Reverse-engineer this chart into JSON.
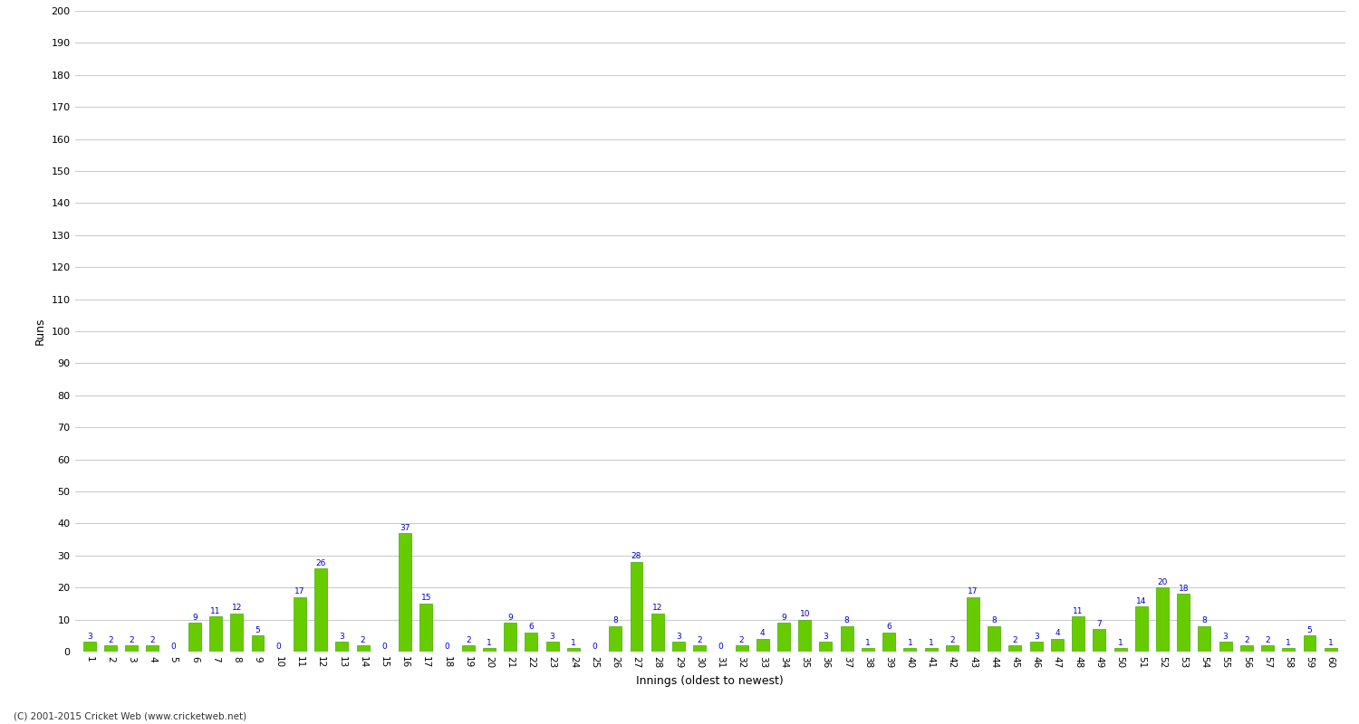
{
  "values": [
    3,
    2,
    2,
    2,
    0,
    9,
    11,
    12,
    5,
    0,
    17,
    26,
    3,
    2,
    0,
    37,
    15,
    0,
    2,
    1,
    9,
    6,
    3,
    1,
    0,
    8,
    28,
    12,
    3,
    2,
    0,
    2,
    4,
    9,
    10,
    3,
    8,
    1,
    6,
    1,
    1,
    2,
    17,
    8,
    2,
    3,
    4,
    11,
    7,
    1,
    14,
    20,
    18,
    8,
    3,
    2,
    2,
    1,
    5,
    1
  ],
  "x_labels": [
    "1",
    "2",
    "3",
    "4",
    "5",
    "6",
    "7",
    "8",
    "9",
    "10",
    "11",
    "12",
    "13",
    "14",
    "15",
    "16",
    "17",
    "18",
    "19",
    "20",
    "21",
    "22",
    "23",
    "24",
    "25",
    "26",
    "27",
    "28",
    "29",
    "30",
    "31",
    "32",
    "33",
    "34",
    "35",
    "36",
    "37",
    "38",
    "39",
    "40",
    "41",
    "42",
    "43",
    "44",
    "45",
    "46",
    "47",
    "48",
    "49",
    "50",
    "51",
    "52",
    "53",
    "54",
    "55",
    "56",
    "57",
    "58",
    "59",
    "60"
  ],
  "bar_color": "#66cc00",
  "bar_edge_color": "#44aa00",
  "label_color": "#0000cc",
  "ylabel": "Runs",
  "xlabel": "Innings (oldest to newest)",
  "ylim": [
    0,
    200
  ],
  "yticks": [
    0,
    10,
    20,
    30,
    40,
    50,
    60,
    70,
    80,
    90,
    100,
    110,
    120,
    130,
    140,
    150,
    160,
    170,
    180,
    190,
    200
  ],
  "bg_color": "#ffffff",
  "grid_color": "#cccccc",
  "footer": "(C) 2001-2015 Cricket Web (www.cricketweb.net)"
}
